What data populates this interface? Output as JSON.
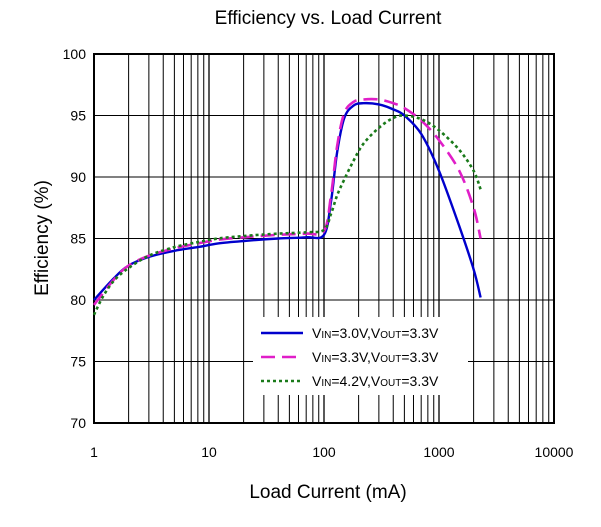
{
  "chart_data": {
    "type": "line",
    "title": "Efficiency vs. Load Current",
    "xlabel": "Load Current (mA)",
    "ylabel": "Efficiency (%)",
    "xscale": "log",
    "xlim": [
      1,
      10000
    ],
    "ylim": [
      70,
      100
    ],
    "xticks": [
      1,
      10,
      100,
      1000,
      10000
    ],
    "xtick_labels": [
      "1",
      "10",
      "100",
      "1000",
      "10000"
    ],
    "yticks": [
      70,
      75,
      80,
      85,
      90,
      95,
      100
    ],
    "ytick_labels": [
      "70",
      "75",
      "80",
      "85",
      "90",
      "95",
      "100"
    ],
    "grid": true,
    "legend_position": "lower-right",
    "series": [
      {
        "name": "VIN=3.0V,VOUT=3.3V",
        "legend_parts": [
          [
            "V",
            ""
          ],
          [
            "IN",
            "sub"
          ],
          [
            "=3.0V,V",
            ""
          ],
          [
            "OUT",
            "sub"
          ],
          [
            "=3.3V",
            ""
          ]
        ],
        "color": "#0000cc",
        "style": "solid",
        "x": [
          1,
          1.5,
          2,
          3,
          5,
          8,
          12,
          20,
          40,
          70,
          100,
          115,
          130,
          150,
          180,
          220,
          300,
          400,
          500,
          700,
          1000,
          1500,
          2000,
          2300
        ],
        "y": [
          80.0,
          81.8,
          82.8,
          83.5,
          84.0,
          84.3,
          84.6,
          84.8,
          85.0,
          85.1,
          85.3,
          88.0,
          92.0,
          94.8,
          95.8,
          96.0,
          95.9,
          95.5,
          95.0,
          93.5,
          90.5,
          86.0,
          82.5,
          80.2
        ]
      },
      {
        "name": "VIN=3.3V,VOUT=3.3V",
        "legend_parts": [
          [
            "V",
            ""
          ],
          [
            "IN",
            "sub"
          ],
          [
            "=3.3V,V",
            ""
          ],
          [
            "OUT",
            "sub"
          ],
          [
            "=3.3V",
            ""
          ]
        ],
        "color": "#e01ec8",
        "style": "dashed",
        "x": [
          1,
          1.5,
          2,
          3,
          5,
          8,
          12,
          20,
          40,
          70,
          100,
          115,
          130,
          150,
          180,
          220,
          300,
          400,
          500,
          700,
          1000,
          1500,
          2000,
          2300
        ],
        "y": [
          79.6,
          81.7,
          82.8,
          83.6,
          84.2,
          84.6,
          84.9,
          85.1,
          85.3,
          85.4,
          85.6,
          88.5,
          92.5,
          95.2,
          96.1,
          96.3,
          96.3,
          96.0,
          95.6,
          94.6,
          93.0,
          90.5,
          87.5,
          85.0
        ]
      },
      {
        "name": "VIN=4.2V,VOUT=3.3V",
        "legend_parts": [
          [
            "V",
            ""
          ],
          [
            "IN",
            "sub"
          ],
          [
            "=4.2V,V",
            ""
          ],
          [
            "OUT",
            "sub"
          ],
          [
            "=3.3V",
            ""
          ]
        ],
        "color": "#1a7a1a",
        "style": "dotted",
        "x": [
          1,
          1.2,
          1.5,
          2,
          3,
          5,
          8,
          12,
          20,
          40,
          70,
          100,
          115,
          130,
          150,
          180,
          220,
          300,
          400,
          500,
          700,
          1000,
          1500,
          2000,
          2300
        ],
        "y": [
          78.8,
          80.3,
          81.6,
          82.6,
          83.6,
          84.3,
          84.7,
          85.0,
          85.2,
          85.4,
          85.5,
          85.7,
          87.0,
          88.5,
          89.8,
          91.3,
          92.7,
          94.0,
          94.8,
          95.0,
          94.7,
          93.8,
          92.2,
          90.5,
          89.0
        ]
      }
    ]
  }
}
